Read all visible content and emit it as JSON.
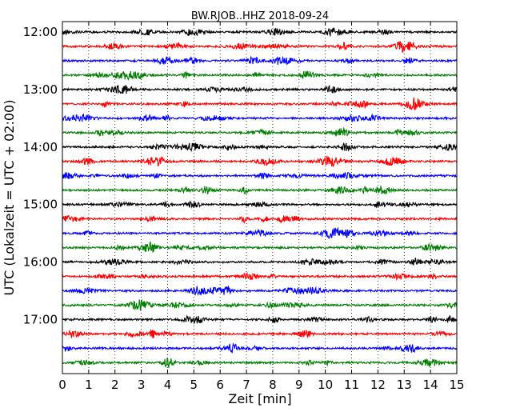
{
  "chart_data": {
    "type": "line",
    "title": "BW.RJOB..HHZ 2018-09-24",
    "xlabel": "Zeit  [min]",
    "ylabel": "UTC (Lokalzeit = UTC + 02:00)",
    "xlim": [
      0,
      15
    ],
    "x_ticks": [
      "0",
      "1",
      "2",
      "3",
      "4",
      "5",
      "6",
      "7",
      "8",
      "9",
      "10",
      "11",
      "12",
      "13",
      "14",
      "15"
    ],
    "y_ticks": [
      "12:00",
      "13:00",
      "14:00",
      "15:00",
      "16:00",
      "17:00"
    ],
    "grid": "vertical dotted",
    "trace_colors": [
      "#000000",
      "#ff0000",
      "#0000ff",
      "#007f00"
    ],
    "traces_per_hour": 4,
    "trace_count": 24,
    "trace_start_labels": [
      "12:00",
      "12:15",
      "12:30",
      "12:45",
      "13:00",
      "13:15",
      "13:30",
      "13:45",
      "14:00",
      "14:15",
      "14:30",
      "14:45",
      "15:00",
      "15:15",
      "15:30",
      "15:45",
      "16:00",
      "16:15",
      "16:30",
      "16:45",
      "17:00",
      "17:15",
      "17:30",
      "17:45"
    ]
  }
}
